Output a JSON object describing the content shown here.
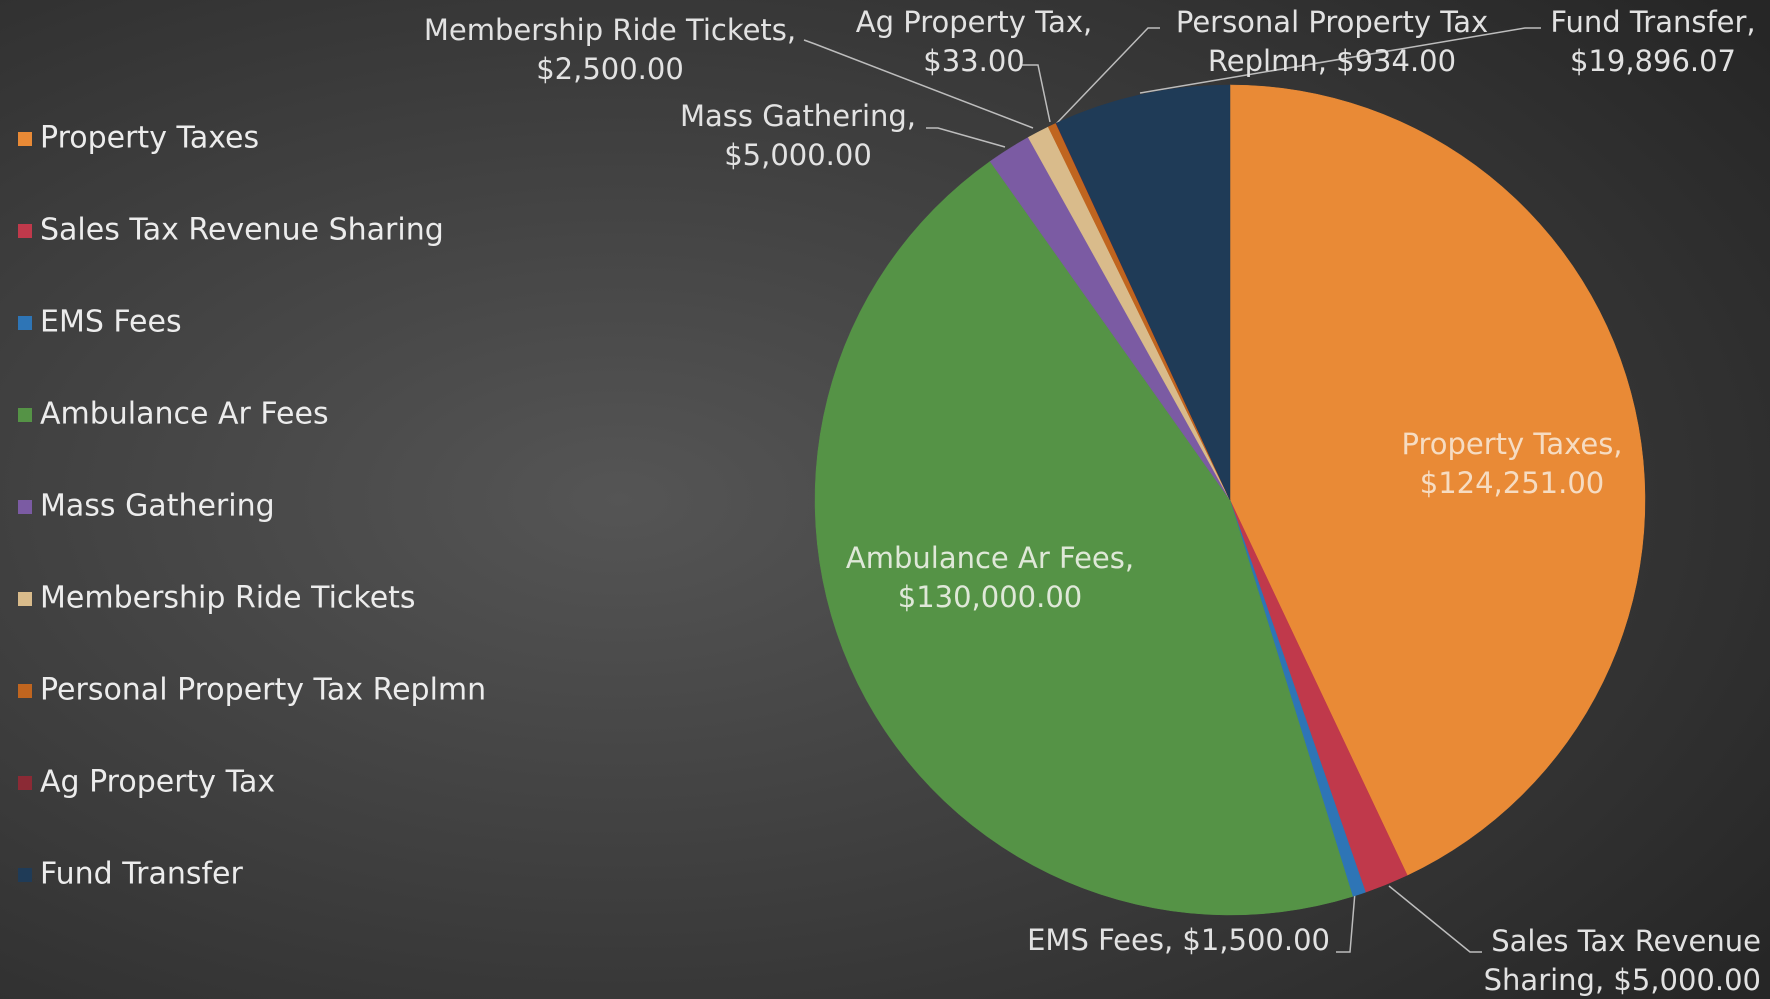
{
  "chart_data": {
    "type": "pie",
    "categories": [
      "Property Taxes",
      "Sales Tax Revenue Sharing",
      "EMS Fees",
      "Ambulance Ar Fees",
      "Mass Gathering",
      "Membership Ride Tickets",
      "Personal Property Tax Replmn",
      "Ag Property Tax",
      "Fund Transfer"
    ],
    "values": [
      124251,
      5000,
      1500,
      130000,
      5000,
      2500,
      934,
      33,
      19896.07
    ],
    "value_labels": [
      [
        "Property Taxes,",
        "$124,251.00"
      ],
      [
        "Sales Tax Revenue",
        "Sharing, $5,000.00"
      ],
      [
        "EMS Fees, $1,500.00"
      ],
      [
        "Ambulance Ar Fees,",
        "$130,000.00"
      ],
      [
        "Mass Gathering,",
        "$5,000.00"
      ],
      [
        "Membership Ride Tickets,",
        "$2,500.00"
      ],
      [
        "Personal Property Tax",
        "Replmn, $934.00"
      ],
      [
        "Ag Property Tax,",
        "$33.00"
      ],
      [
        "Fund Transfer,",
        "$19,896.07"
      ]
    ],
    "colors": [
      "#e98a36",
      "#c0394b",
      "#2e75b6",
      "#559346",
      "#7b5ba3",
      "#d9bb8b",
      "#c0651f",
      "#8b2a35",
      "#1f3b57"
    ],
    "legend": "left"
  }
}
